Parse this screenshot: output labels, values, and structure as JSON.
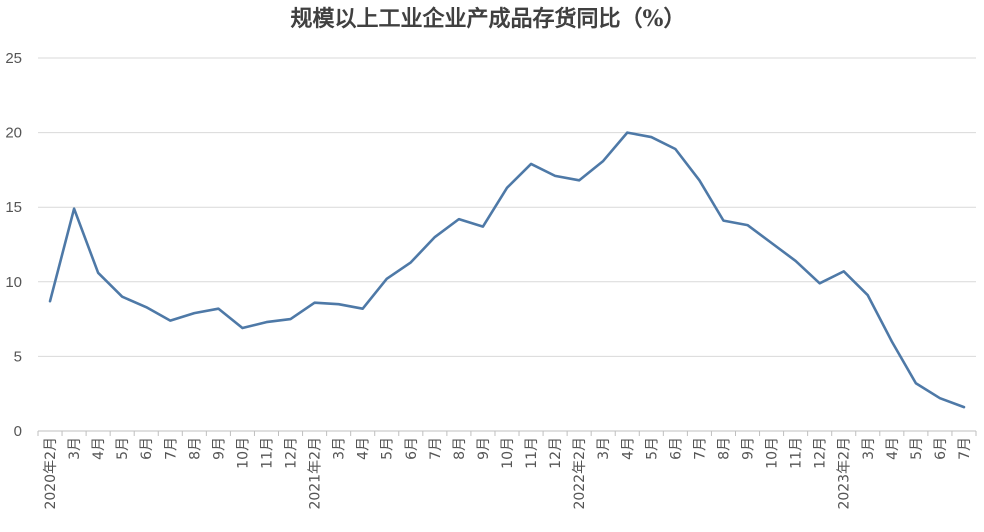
{
  "chart_data": {
    "type": "line",
    "title": "规模以上工业企业产成品存货同比（%）",
    "xlabel": "",
    "ylabel": "",
    "ylim": [
      0,
      25
    ],
    "yticks": [
      0,
      5,
      10,
      15,
      20,
      25
    ],
    "grid": true,
    "legend": "none",
    "line_color": "#4e79a7",
    "categories": [
      "2020年2月",
      "3月",
      "4月",
      "5月",
      "6月",
      "7月",
      "8月",
      "9月",
      "10月",
      "11月",
      "12月",
      "2021年2月",
      "3月",
      "4月",
      "5月",
      "6月",
      "7月",
      "8月",
      "9月",
      "10月",
      "11月",
      "12月",
      "2022年2月",
      "3月",
      "4月",
      "5月",
      "6月",
      "7月",
      "8月",
      "9月",
      "10月",
      "11月",
      "12月",
      "2023年2月",
      "3月",
      "4月",
      "5月",
      "6月",
      "7月"
    ],
    "series": [
      {
        "values": [
          8.7,
          14.9,
          10.6,
          9.0,
          8.3,
          7.4,
          7.9,
          8.2,
          6.9,
          7.3,
          7.5,
          8.6,
          8.5,
          8.2,
          10.2,
          11.3,
          13.0,
          14.2,
          13.7,
          16.3,
          17.9,
          17.1,
          16.8,
          18.1,
          20.0,
          19.7,
          18.9,
          16.8,
          14.1,
          13.8,
          12.6,
          11.4,
          9.9,
          10.7,
          9.1,
          6.0,
          3.2,
          2.2,
          1.6
        ]
      }
    ]
  }
}
